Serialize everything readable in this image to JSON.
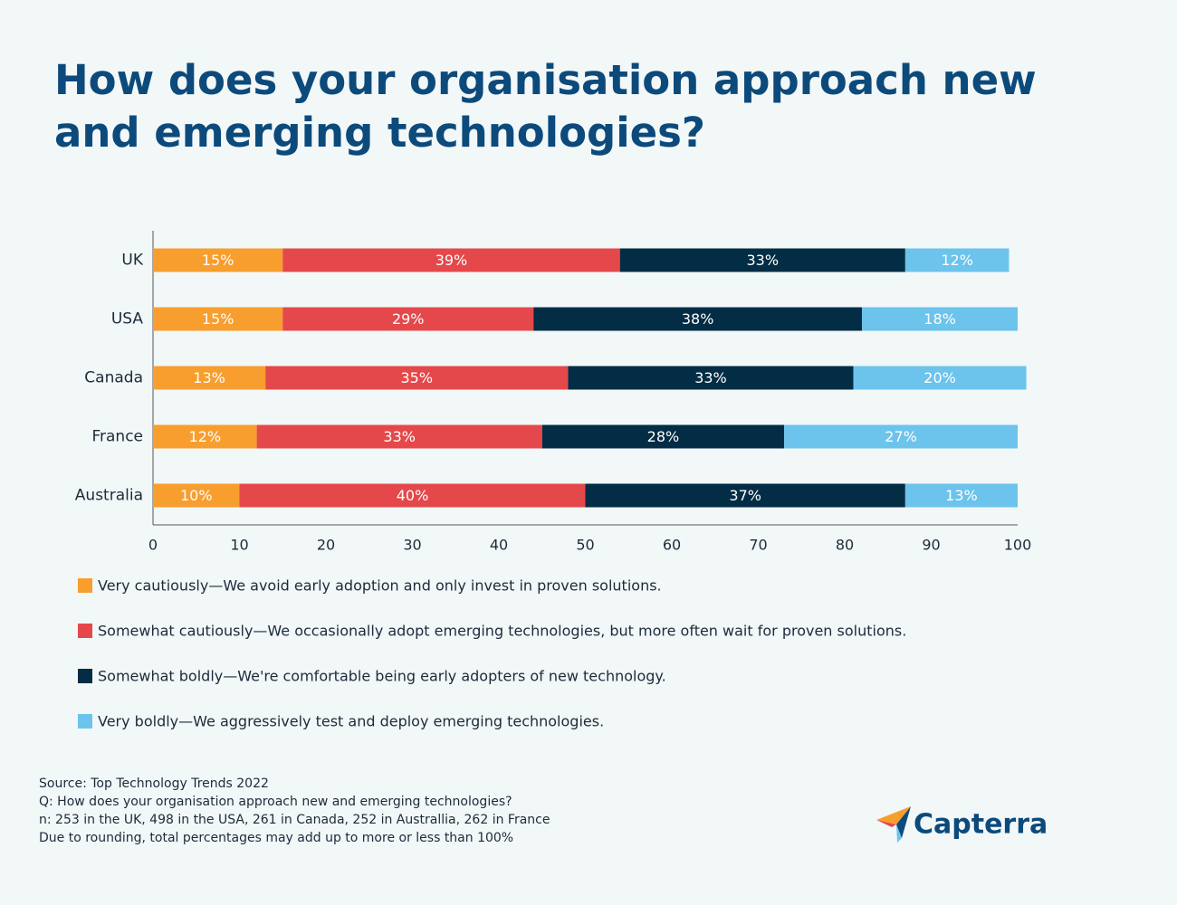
{
  "chart_data": {
    "type": "bar",
    "orientation": "horizontal",
    "stacked": true,
    "title": "How does your organisation approach new and emerging technologies?",
    "categories": [
      "UK",
      "USA",
      "Canada",
      "France",
      "Australia"
    ],
    "series": [
      {
        "name": "Very cautiously—We avoid early adoption and only invest in proven solutions.",
        "color": "#f89e2e",
        "values": [
          15,
          15,
          13,
          12,
          10
        ],
        "value_labels": [
          "15%",
          "15%",
          "13%",
          "12%",
          "10%"
        ]
      },
      {
        "name": "Somewhat cautiously—We occasionally adopt emerging technologies, but more often wait for proven solutions.",
        "color": "#e5484a",
        "values": [
          39,
          29,
          35,
          33,
          40
        ],
        "value_labels": [
          "39%",
          "29%",
          "35%",
          "33%",
          "40%"
        ]
      },
      {
        "name": "Somewhat boldly—We're comfortable being early adopters of new technology.",
        "color": "#032c45",
        "values": [
          33,
          38,
          33,
          28,
          37
        ],
        "value_labels": [
          "33%",
          "38%",
          "33%",
          "28%",
          "37%"
        ]
      },
      {
        "name": "Very boldly—We aggressively test and deploy emerging technologies.",
        "color": "#6cc3ec",
        "values": [
          12,
          18,
          20,
          27,
          13
        ],
        "value_labels": [
          "12%",
          "18%",
          "20%",
          "27%",
          "13%"
        ]
      }
    ],
    "xlim": [
      0,
      100
    ],
    "xticks": [
      0,
      10,
      20,
      30,
      40,
      50,
      60,
      70,
      80,
      90,
      100
    ],
    "grid": false,
    "notes": [
      "Source: Top Technology Trends 2022",
      "Q: How does your organisation approach new and emerging technologies?",
      "n: 253 in the UK, 498 in the USA, 261 in Canada, 252 in Australlia, 262 in France",
      "Due to rounding, total percentages may add up to more or less than 100%"
    ],
    "logo": "Capterra"
  }
}
